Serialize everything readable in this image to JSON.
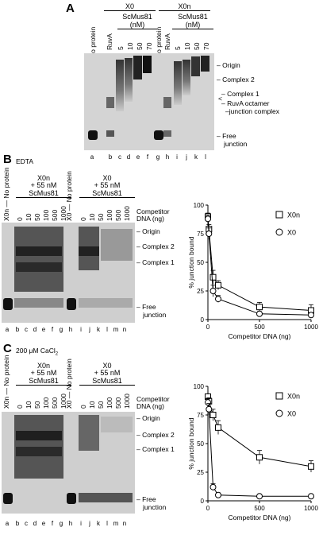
{
  "panelA": {
    "letter": "A",
    "group_X0": "X0",
    "group_X0n": "X0n",
    "no_protein": "No protein",
    "ruva": "RuvA",
    "scmus81": "ScMus81",
    "nm": "(nM)",
    "concs": [
      "5",
      "10",
      "50",
      "70"
    ],
    "bands": [
      "Origin",
      "Complex 2",
      "Complex 1",
      "RuvA octamer",
      "–junction complex",
      "Free",
      "junction"
    ],
    "lanes": [
      "a",
      "b",
      "c",
      "d",
      "e",
      "f",
      "g",
      "h",
      "i",
      "j",
      "k",
      "l"
    ]
  },
  "panelB": {
    "letter": "B",
    "condition": "EDTA",
    "left_label_x0n": "X0n",
    "left_label_x0": "X0",
    "no_protein": "No protein",
    "group1": [
      "X0n",
      "+ 55 nM",
      "ScMus81"
    ],
    "group2": [
      "X0",
      "+ 55 nM",
      "ScMus81"
    ],
    "concs": [
      "0",
      "10",
      "50",
      "100",
      "500",
      "1000"
    ],
    "competitor": [
      "Competitor",
      "DNA (ng)"
    ],
    "bands": [
      "Origin",
      "Complex 2",
      "Complex 1",
      "Free",
      "junction"
    ],
    "lanes": [
      "a",
      "b",
      "c",
      "d",
      "e",
      "f",
      "g",
      "h",
      "i",
      "j",
      "k",
      "l",
      "m",
      "n"
    ]
  },
  "panelC": {
    "letter": "C",
    "condition": "200 μM CaCl",
    "condition_sub": "2",
    "left_label_x0n": "X0n",
    "left_label_x0": "X0",
    "no_protein": "No protein",
    "group1": [
      "X0n",
      "+ 55 nM",
      "ScMus81"
    ],
    "group2": [
      "X0",
      "+ 55 nM",
      "ScMus81"
    ],
    "concs": [
      "0",
      "10",
      "50",
      "100",
      "500",
      "1000"
    ],
    "competitor": [
      "Competitor",
      "DNA (ng)"
    ],
    "bands": [
      "Origin",
      "Complex 2",
      "Complex 1",
      "Free",
      "junction"
    ],
    "lanes": [
      "a",
      "b",
      "c",
      "d",
      "e",
      "f",
      "g",
      "h",
      "i",
      "j",
      "k",
      "l",
      "m",
      "n"
    ]
  },
  "chart_data": [
    {
      "type": "line",
      "ylabel": "% junction bound",
      "xlabel": "Competitor DNA (ng)",
      "xlim": [
        0,
        1000
      ],
      "ylim": [
        0,
        100
      ],
      "xticks": [
        "0",
        "500",
        "1000"
      ],
      "yticks": [
        "0",
        "25",
        "50",
        "75",
        "100"
      ],
      "legend_position": "top-right",
      "series": [
        {
          "name": "X0n",
          "marker": "square",
          "x": [
            0,
            10,
            50,
            100,
            500,
            1000
          ],
          "y": [
            90,
            79,
            37,
            30,
            11,
            8
          ],
          "err": [
            3,
            4,
            6,
            4,
            4,
            5
          ]
        },
        {
          "name": "X0",
          "marker": "circle",
          "x": [
            0,
            10,
            50,
            100,
            500,
            1000
          ],
          "y": [
            88,
            75,
            25,
            18,
            5,
            4
          ],
          "err": [
            3,
            5,
            5,
            3,
            2,
            2
          ]
        }
      ]
    },
    {
      "type": "line",
      "ylabel": "% junction bound",
      "xlabel": "Competitor DNA (ng)",
      "xlim": [
        0,
        1000
      ],
      "ylim": [
        0,
        100
      ],
      "xticks": [
        "0",
        "500",
        "1000"
      ],
      "yticks": [
        "0",
        "25",
        "50",
        "75",
        "100"
      ],
      "legend_position": "top-right",
      "series": [
        {
          "name": "X0n",
          "marker": "square",
          "x": [
            0,
            10,
            50,
            100,
            500,
            1000
          ],
          "y": [
            91,
            87,
            75,
            64,
            38,
            30
          ],
          "err": [
            2,
            3,
            5,
            6,
            6,
            5
          ]
        },
        {
          "name": "X0",
          "marker": "circle",
          "x": [
            0,
            10,
            50,
            100,
            500,
            1000
          ],
          "y": [
            86,
            80,
            12,
            5,
            4,
            4
          ],
          "err": [
            3,
            5,
            3,
            2,
            1,
            1
          ]
        }
      ]
    }
  ]
}
